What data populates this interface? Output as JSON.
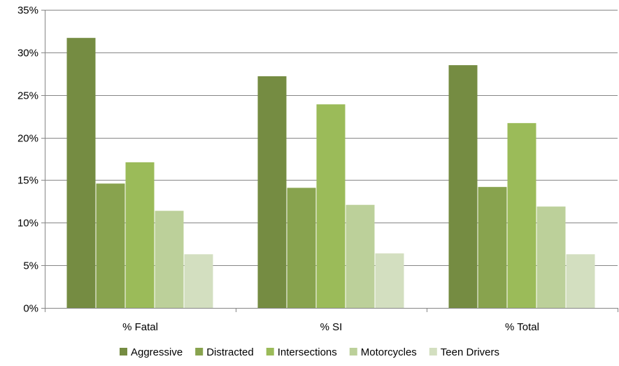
{
  "chart_data": {
    "type": "bar",
    "title": "",
    "xlabel": "",
    "ylabel": "",
    "categories": [
      "% Fatal",
      "% SI",
      "% Total"
    ],
    "series": [
      {
        "name": "Aggressive",
        "values": [
          31.7,
          27.2,
          28.5
        ],
        "color": "#758c42"
      },
      {
        "name": "Distracted",
        "values": [
          14.6,
          14.1,
          14.2
        ],
        "color": "#88a34e"
      },
      {
        "name": "Intersections",
        "values": [
          17.1,
          23.9,
          21.7
        ],
        "color": "#9bbb59"
      },
      {
        "name": "Motorcycles",
        "values": [
          11.4,
          12.1,
          11.9
        ],
        "color": "#bcd09a"
      },
      {
        "name": "Teen Drivers",
        "values": [
          6.3,
          6.4,
          6.3
        ],
        "color": "#d3dfc0"
      }
    ],
    "ylim": [
      0,
      35
    ],
    "yticks": [
      0,
      5,
      10,
      15,
      20,
      25,
      30,
      35
    ],
    "ytick_labels": [
      "0%",
      "5%",
      "10%",
      "15%",
      "20%",
      "25%",
      "30%",
      "35%"
    ],
    "grid": true,
    "legend_position": "bottom",
    "colors": {
      "grid": "#868686",
      "axis": "#868686",
      "text": "#000000"
    }
  }
}
